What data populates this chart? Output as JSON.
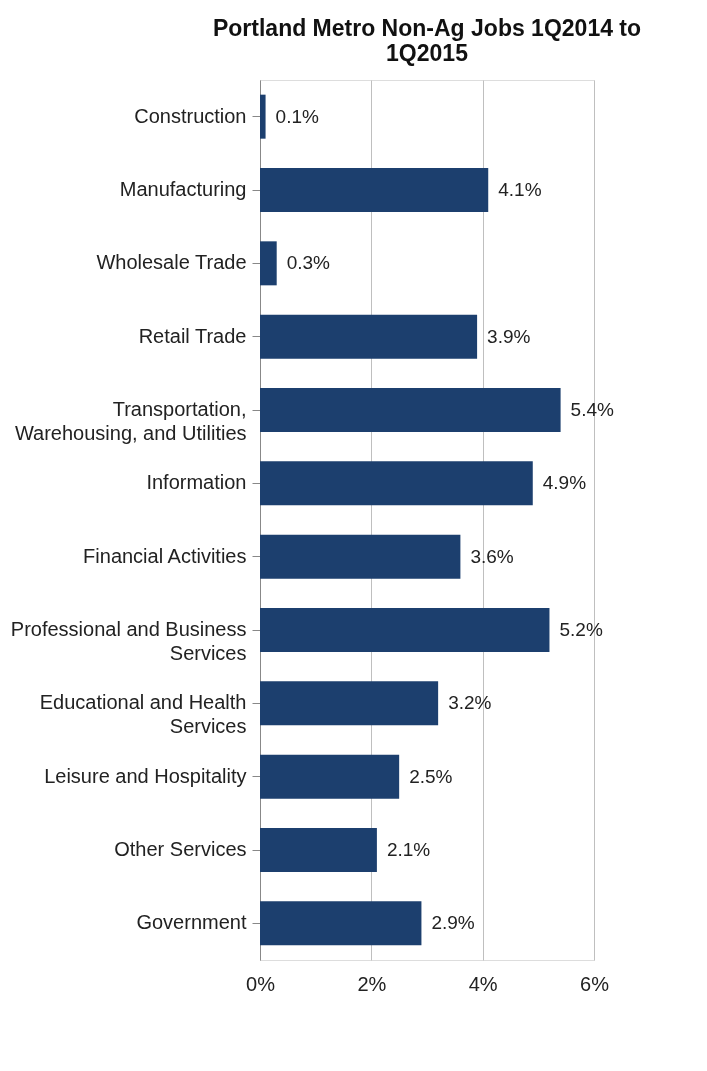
{
  "chart_data": {
    "type": "bar",
    "orientation": "horizontal",
    "title": "Portland Metro Non-Ag Jobs 1Q2014 to 1Q2015",
    "categories": [
      "Construction",
      "Manufacturing",
      "Wholesale Trade",
      "Retail Trade",
      "Transportation, Warehousing, and Utilities",
      "Information",
      "Financial Activities",
      "Professional and Business Services",
      "Educational and Health Services",
      "Leisure and Hospitality",
      "Other Services",
      "Government"
    ],
    "values": [
      0.1,
      4.1,
      0.3,
      3.9,
      5.4,
      4.9,
      3.6,
      5.2,
      3.2,
      2.5,
      2.1,
      2.9
    ],
    "value_labels": [
      "0.1%",
      "4.1%",
      "0.3%",
      "3.9%",
      "5.4%",
      "4.9%",
      "3.6%",
      "5.2%",
      "3.2%",
      "2.5%",
      "2.1%",
      "2.9%"
    ],
    "color": "#1c3f6e",
    "xlim": [
      0,
      6
    ],
    "xticks": [
      {
        "value": 0,
        "label": "0%"
      },
      {
        "value": 2,
        "label": "2%"
      },
      {
        "value": 4,
        "label": "4%"
      },
      {
        "value": 6,
        "label": "6%"
      }
    ],
    "grid": "x"
  }
}
